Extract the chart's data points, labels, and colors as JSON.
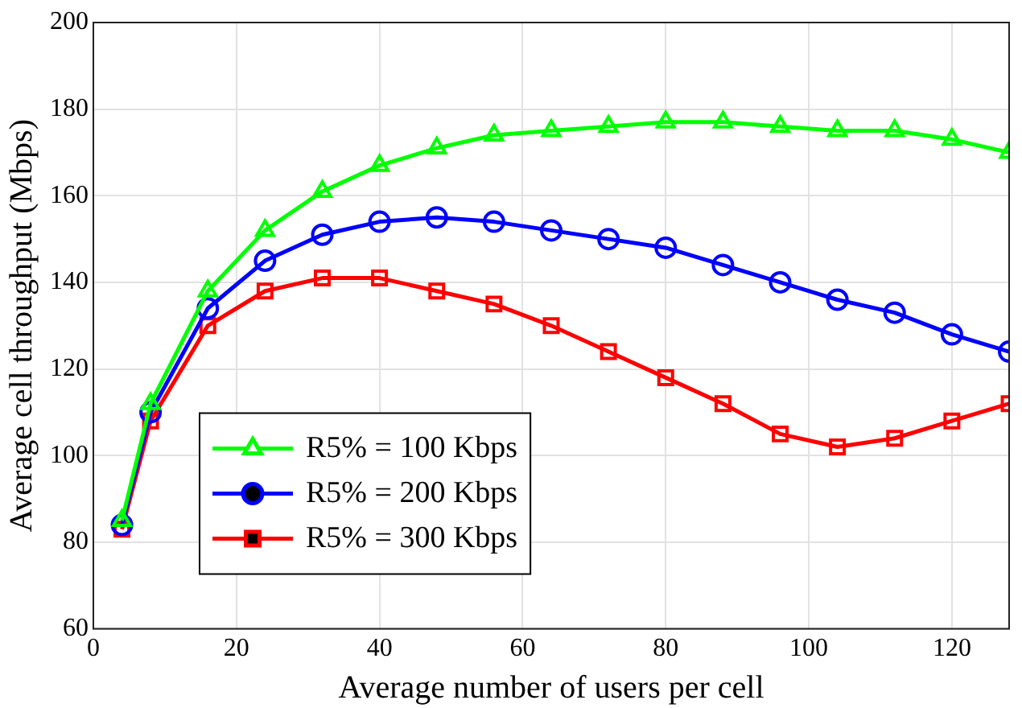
{
  "chart_data": {
    "type": "line",
    "xlabel": "Average number of users per cell",
    "ylabel": "Average cell throughput (Mbps)",
    "x": [
      4,
      8,
      16,
      24,
      32,
      40,
      48,
      56,
      64,
      72,
      80,
      88,
      96,
      104,
      112,
      120,
      128
    ],
    "series": [
      {
        "name": "R5% = 100 Kbps",
        "color": "#00ff00",
        "marker": "triangle",
        "values": [
          85,
          112,
          138,
          152,
          161,
          167,
          171,
          174,
          175,
          176,
          177,
          177,
          176,
          175,
          175,
          173,
          170
        ]
      },
      {
        "name": "R5% = 200 Kbps",
        "color": "#0000ff",
        "marker": "circle",
        "values": [
          84,
          110,
          134,
          145,
          151,
          154,
          155,
          154,
          152,
          150,
          148,
          144,
          140,
          136,
          133,
          128,
          124
        ]
      },
      {
        "name": "R5% = 300 Kbps",
        "color": "#ff0000",
        "marker": "square",
        "values": [
          83,
          108,
          130,
          138,
          141,
          141,
          138,
          135,
          130,
          124,
          118,
          112,
          105,
          102,
          104,
          108,
          112
        ]
      }
    ],
    "xlim": [
      0,
      128
    ],
    "xticks": [
      0,
      20,
      40,
      60,
      80,
      100,
      120
    ],
    "ylim": [
      60,
      200
    ],
    "yticks": [
      60,
      80,
      100,
      120,
      140,
      160,
      180,
      200
    ],
    "grid": true,
    "legend": "bottom left",
    "line_style": "solid"
  }
}
